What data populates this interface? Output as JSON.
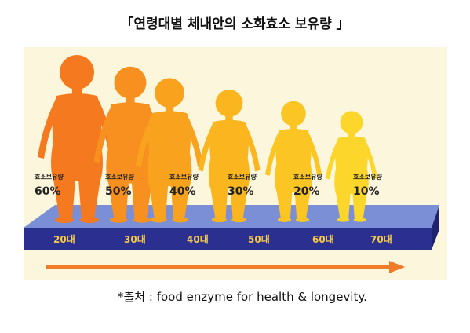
{
  "title": "「연령대별 체내안의 소화효소 보유량 」",
  "colors": {
    "panel_bg": "#fcf6dc",
    "platform_top": "#7b8fd6",
    "platform_front": "#2b2f8f",
    "arrow": "#f07c2a"
  },
  "figures": [
    {
      "caption": "효소보유량",
      "percent": "60%",
      "age": "20대",
      "color": "#f57a1f"
    },
    {
      "caption": "효소보유량",
      "percent": "50%",
      "age": "30대",
      "color": "#f7901e"
    },
    {
      "caption": "효소보유량",
      "percent": "40%",
      "age": "40대",
      "color": "#f9a21d"
    },
    {
      "caption": "효소보유량",
      "percent": "30%",
      "age": "50대",
      "color": "#fab51f"
    },
    {
      "caption": "효소보유량",
      "percent": "20%",
      "age": "60대",
      "color": "#fbc623"
    },
    {
      "caption": "효소보유량",
      "percent": "10%",
      "age": "70대",
      "color": "#fcd62a"
    }
  ],
  "source": "*출처 : food enzyme for health & longevity."
}
